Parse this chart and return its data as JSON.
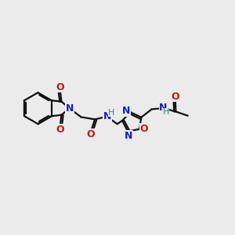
{
  "bg_color": "#ebebeb",
  "bond_color": "#111111",
  "N_color": "#1a1acc",
  "O_color": "#cc1111",
  "H_color": "#3a8080",
  "lw": 1.6,
  "dbo": 0.07,
  "fs": 9.0,
  "figsize": [
    3.0,
    3.0
  ],
  "dpi": 100,
  "xlim": [
    0,
    10
  ],
  "ylim": [
    0,
    10
  ]
}
